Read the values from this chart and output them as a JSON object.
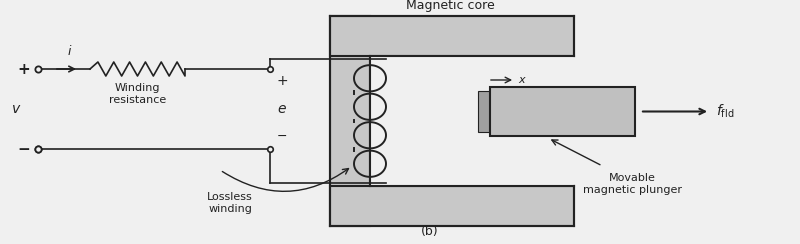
{
  "bg_color": "#f0f0f0",
  "white": "#ffffff",
  "black": "#222222",
  "gray_core": "#c8c8c8",
  "gray_plunger": "#c0c0c0",
  "gray_gap": "#b0b0b0",
  "title_b": "(b)",
  "label_magnetic_core": "Magnetic core",
  "label_winding_resistance": "Winding\nresistance",
  "label_v": "v",
  "label_i": "i",
  "label_e": "e",
  "label_plus_left": "+",
  "label_minus_left": "−",
  "label_plus_right": "+",
  "label_minus_right": "−",
  "label_lossless": "Lossless\nwinding",
  "label_x": "x",
  "label_movable": "Movable\nmagnetic plunger",
  "figsize": [
    8.0,
    2.44
  ],
  "dpi": 100
}
